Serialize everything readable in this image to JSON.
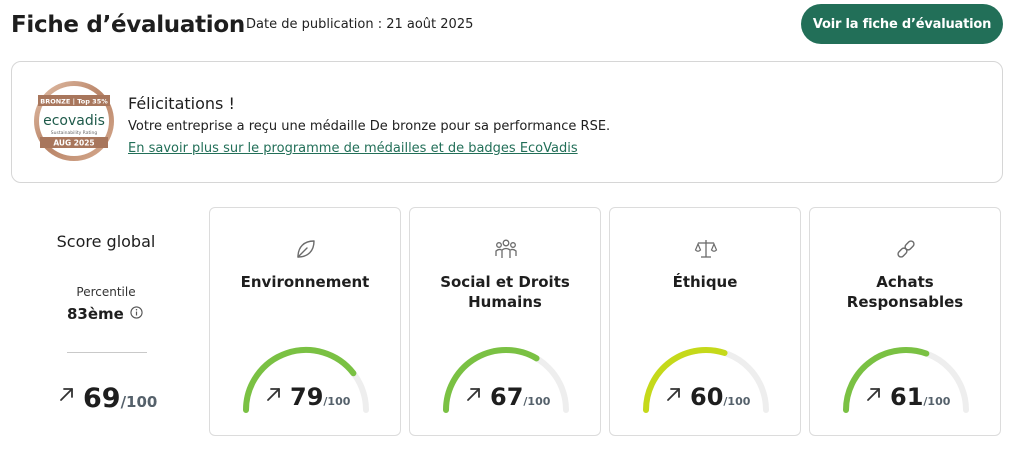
{
  "header": {
    "title": "Fiche d’évaluation",
    "publication_date": "Date de publication : 21 août 2025",
    "view_button_label": "Voir la fiche d’évaluation"
  },
  "banner": {
    "medal": {
      "top_label": "BRONZE | Top 35%",
      "brand": "ecovadis",
      "subtitle": "Sustainability Rating",
      "date": "AUG 2025",
      "colors": {
        "ring": "#c79a7e",
        "band": "#a8765c",
        "brand_text": "#1e5a4a"
      }
    },
    "title": "Félicitations !",
    "message": "Votre entreprise a reçu une médaille De bronze pour sa performance RSE.",
    "link_label": "En savoir plus sur le programme de médailles et de badges EcoVadis"
  },
  "global": {
    "title": "Score global",
    "percentile_label": "Percentile",
    "percentile_value": "83ème",
    "score": "69",
    "max": "/100",
    "trend_icon": "arrow-up-right-icon",
    "info_icon": "info-icon"
  },
  "themes": [
    {
      "icon": "leaf-icon",
      "title": "Environnement",
      "score": "79",
      "score_value": 79,
      "max": "/100",
      "gauge_color": "#7ac143"
    },
    {
      "icon": "people-icon",
      "title": "Social et Droits Humains",
      "score": "67",
      "score_value": 67,
      "max": "/100",
      "gauge_color": "#7ac143"
    },
    {
      "icon": "scales-icon",
      "title": "Éthique",
      "score": "60",
      "score_value": 60,
      "max": "/100",
      "gauge_color": "#c5d91a"
    },
    {
      "icon": "link-icon",
      "title": "Achats Responsables",
      "score": "61",
      "score_value": 61,
      "max": "/100",
      "gauge_color": "#7ac143"
    }
  ],
  "colors": {
    "accent": "#226f58",
    "gauge_track": "#eeeeee",
    "icon_gray": "#6b6b6b"
  }
}
